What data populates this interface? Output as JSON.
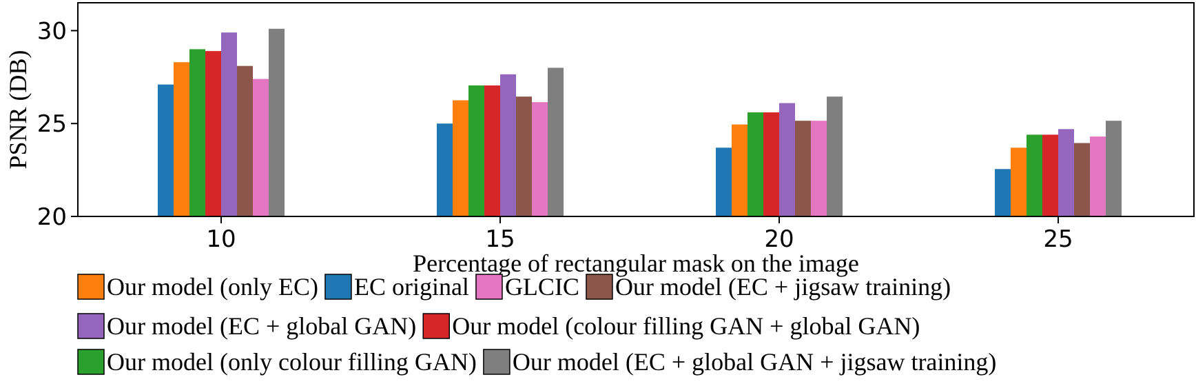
{
  "chart_data": {
    "type": "bar",
    "title": "",
    "xlabel": "Percentage of rectangular mask on the image",
    "ylabel": "PSNR (DB)",
    "ylim": [
      20,
      31.5
    ],
    "yticks": [
      20,
      25,
      30
    ],
    "grid": false,
    "categories": [
      "10",
      "15",
      "20",
      "25"
    ],
    "series": [
      {
        "name": "EC original",
        "color": "#1f77b4",
        "values": [
          27.1,
          25.0,
          23.7,
          22.55
        ]
      },
      {
        "name": "Our model (only EC)",
        "color": "#ff7f0e",
        "values": [
          28.3,
          26.25,
          24.95,
          23.7
        ]
      },
      {
        "name": "Our model (only colour filling GAN)",
        "color": "#2ca02c",
        "values": [
          29.0,
          27.05,
          25.6,
          24.4
        ]
      },
      {
        "name": "Our model (colour filling GAN + global GAN)",
        "color": "#d62728",
        "values": [
          28.9,
          27.05,
          25.6,
          24.4
        ]
      },
      {
        "name": "Our model (EC + global GAN)",
        "color": "#9467bd",
        "values": [
          29.9,
          27.65,
          26.1,
          24.7
        ]
      },
      {
        "name": "Our model (EC + jigsaw training)",
        "color": "#8c564b",
        "values": [
          28.1,
          26.45,
          25.15,
          23.95
        ]
      },
      {
        "name": "GLCIC",
        "color": "#e377c2",
        "values": [
          27.4,
          26.15,
          25.15,
          24.3
        ]
      },
      {
        "name": "Our model (EC + global GAN + jigsaw training)",
        "color": "#7f7f7f",
        "values": [
          30.1,
          28.0,
          26.45,
          25.15
        ]
      }
    ],
    "legend_rows": [
      [
        "Our model (only EC)",
        "EC original",
        "GLCIC",
        "Our model (EC + jigsaw training)"
      ],
      [
        "Our model (EC + global GAN)",
        "Our model (colour filling GAN + global GAN)"
      ],
      [
        "Our model (only colour filling GAN)",
        "Our model (EC + global GAN + jigsaw training)"
      ]
    ],
    "legend_placement": "bottom"
  }
}
